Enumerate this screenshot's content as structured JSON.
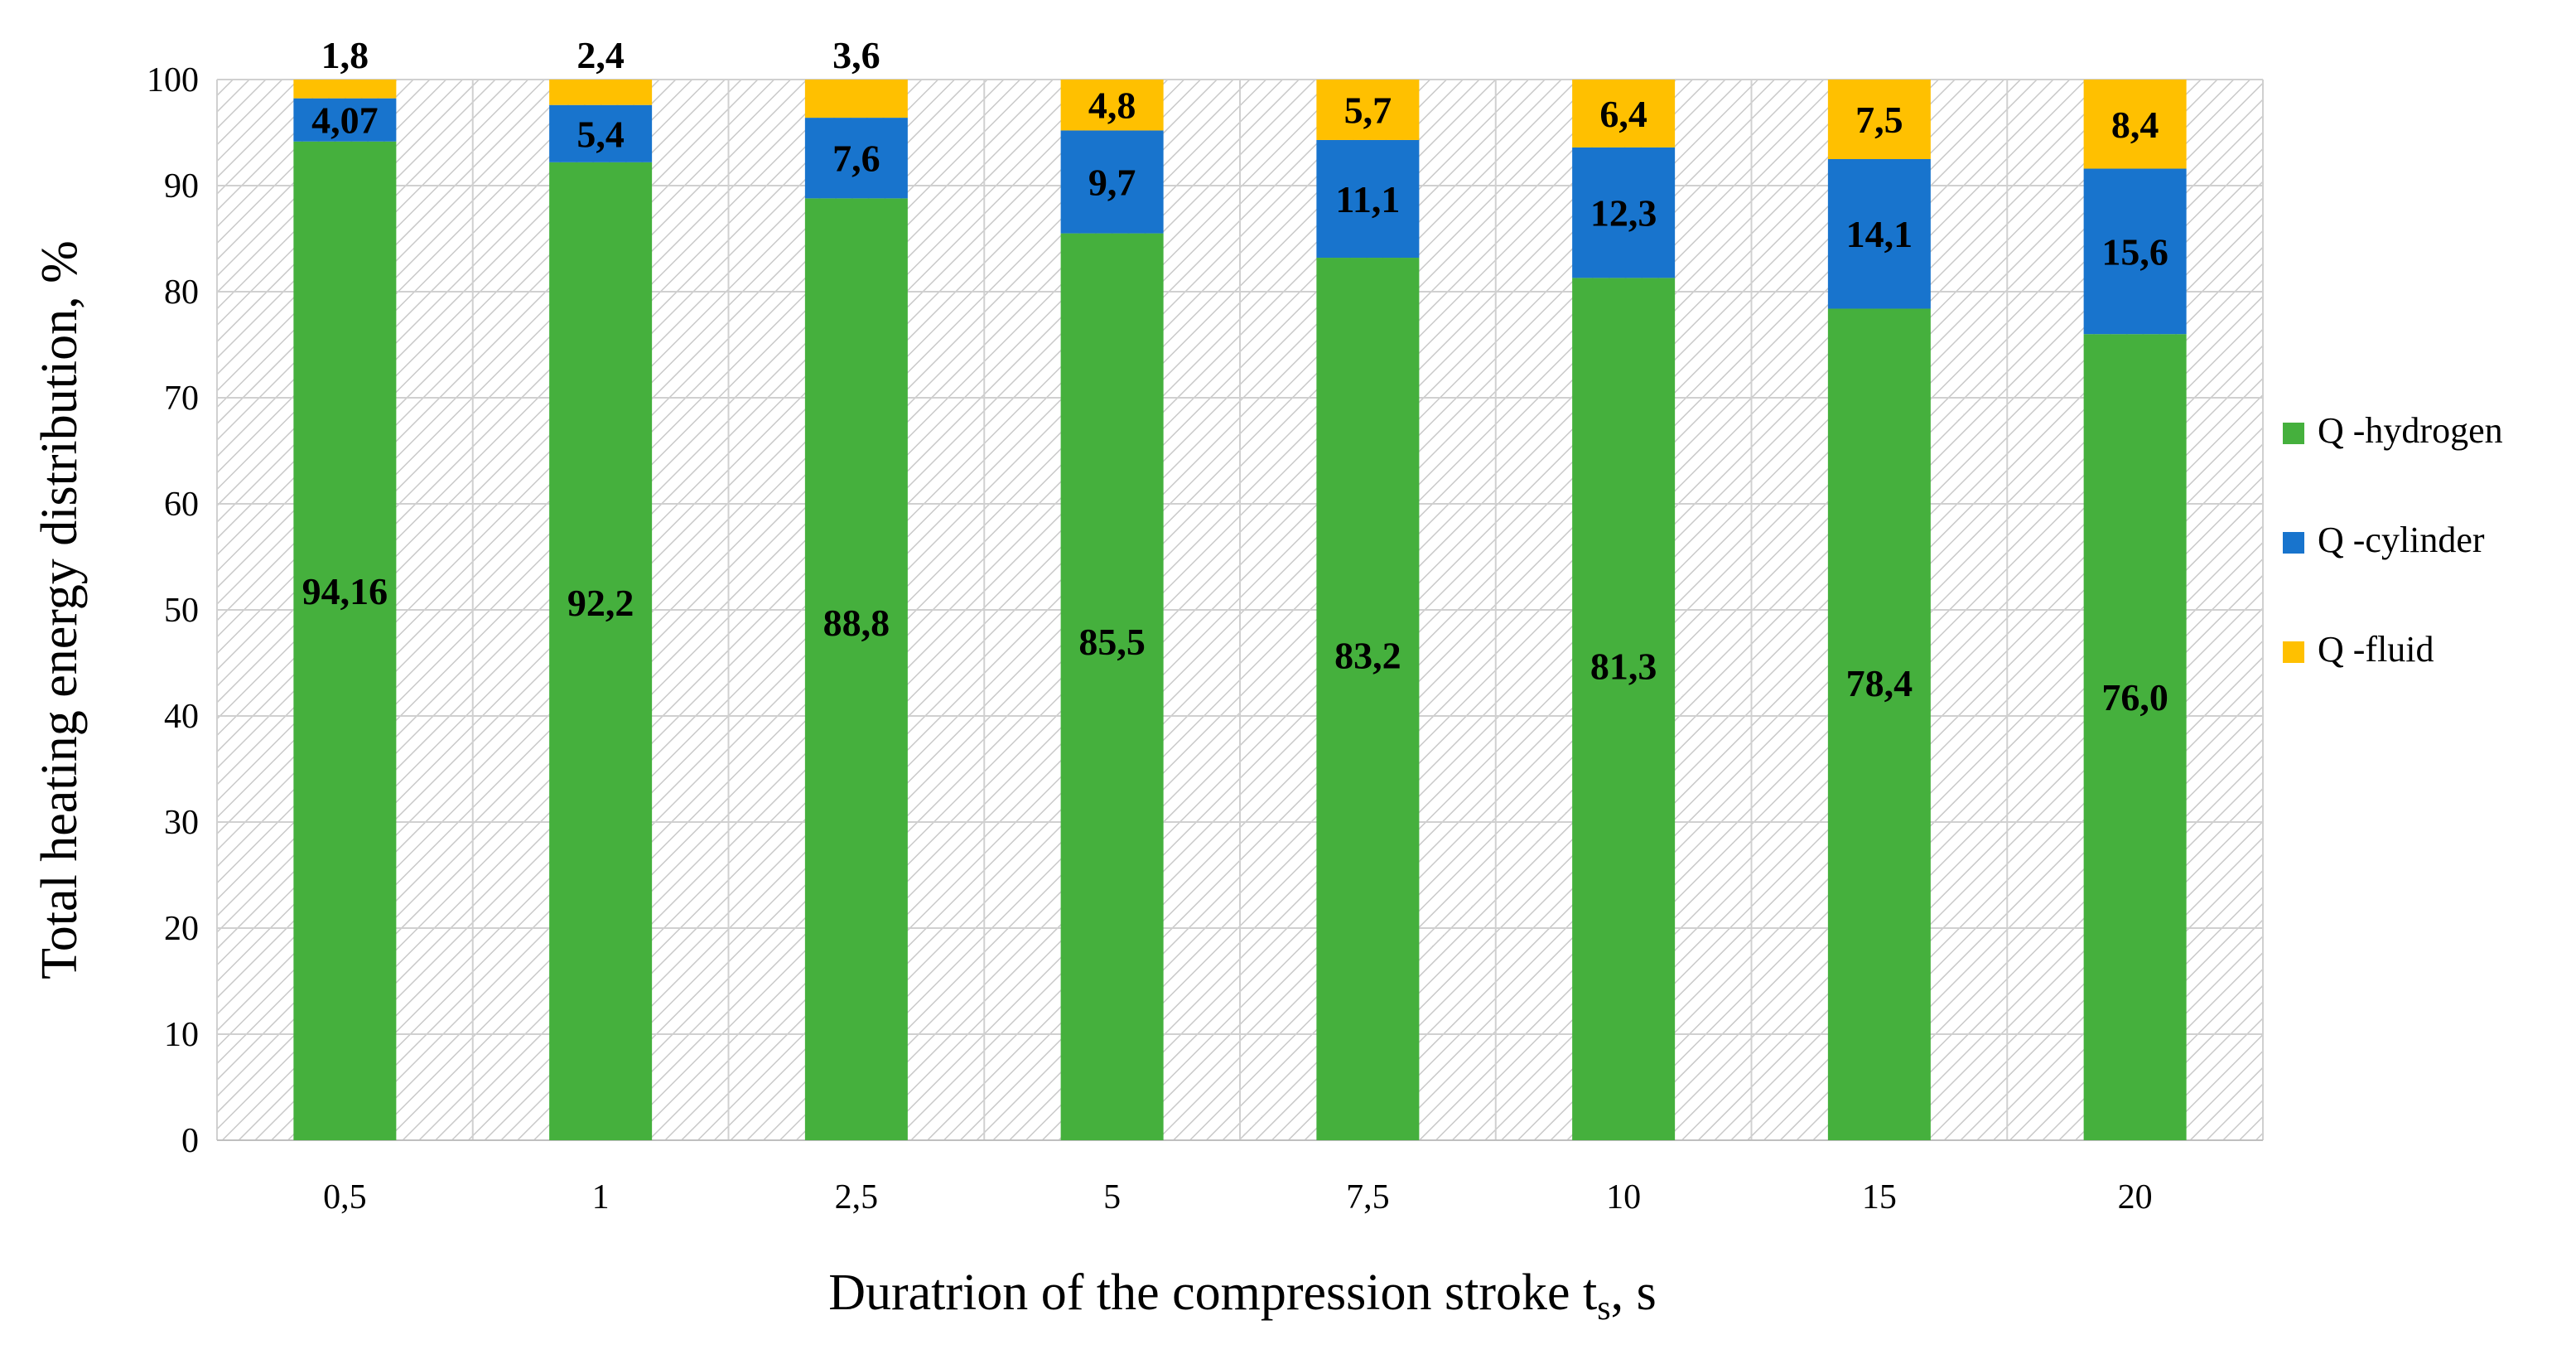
{
  "chart_data": {
    "type": "bar",
    "stacked": true,
    "categories": [
      "0,5",
      "1",
      "2,5",
      "5",
      "7,5",
      "10",
      "15",
      "20"
    ],
    "series": [
      {
        "name": "Q -hydrogen",
        "color": "#45B03D",
        "values": [
          94.16,
          92.2,
          88.8,
          85.5,
          83.2,
          81.3,
          78.4,
          76.0
        ],
        "labels": [
          "94,16",
          "92,2",
          "88,8",
          "85,5",
          "83,2",
          "81,3",
          "78,4",
          "76,0"
        ]
      },
      {
        "name": "Q -cylinder",
        "color": "#1874CD",
        "values": [
          4.07,
          5.4,
          7.6,
          9.7,
          11.1,
          12.3,
          14.1,
          15.6
        ],
        "labels": [
          "4,07",
          "5,4",
          "7,6",
          "9,7",
          "11,1",
          "12,3",
          "14,1",
          "15,6"
        ]
      },
      {
        "name": "Q -fluid",
        "color": "#FFC000",
        "values": [
          1.8,
          2.4,
          3.6,
          4.8,
          5.7,
          6.4,
          7.5,
          8.4
        ],
        "labels": [
          "1,8",
          "2,4",
          "3,6",
          "4,8",
          "5,7",
          "6,4",
          "7,5",
          "8,4"
        ]
      }
    ],
    "ylabel": "Total heating energy distribution, %",
    "xlabel_main": "Duratrion of the compression stroke t",
    "xlabel_sub": "s",
    "xlabel_tail": ", s",
    "ylim": [
      0,
      100
    ],
    "yticks": [
      0,
      10,
      20,
      30,
      40,
      50,
      60,
      70,
      80,
      90,
      100
    ],
    "grid": true,
    "legend": "right"
  }
}
